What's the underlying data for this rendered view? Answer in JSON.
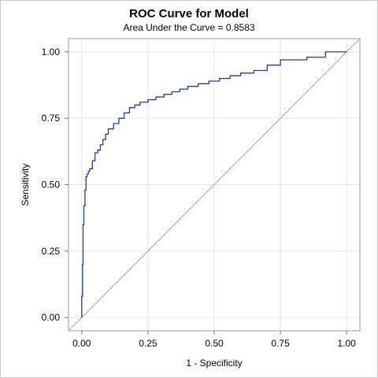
{
  "chart_data": {
    "type": "line",
    "title": "ROC Curve for Model",
    "subtitle": "Area Under the Curve = 0.8583",
    "xlabel": "1 - Specificity",
    "ylabel": "Sensitivity",
    "xlim": [
      -0.05,
      1.05
    ],
    "ylim": [
      -0.05,
      1.05
    ],
    "x_ticks": [
      "0.00",
      "0.25",
      "0.50",
      "0.75",
      "1.00"
    ],
    "y_ticks": [
      "0.00",
      "0.25",
      "0.50",
      "0.75",
      "1.00"
    ],
    "grid": true,
    "legend": "none",
    "series": [
      {
        "role": "roc",
        "color": "#1f3f8f",
        "x": [
          0.0,
          0.0,
          0.003,
          0.003,
          0.005,
          0.005,
          0.008,
          0.008,
          0.012,
          0.012,
          0.016,
          0.016,
          0.02,
          0.02,
          0.025,
          0.025,
          0.03,
          0.03,
          0.04,
          0.04,
          0.05,
          0.05,
          0.06,
          0.06,
          0.07,
          0.07,
          0.08,
          0.08,
          0.09,
          0.09,
          0.1,
          0.1,
          0.12,
          0.12,
          0.14,
          0.14,
          0.16,
          0.16,
          0.18,
          0.18,
          0.2,
          0.2,
          0.22,
          0.22,
          0.25,
          0.25,
          0.28,
          0.28,
          0.31,
          0.31,
          0.34,
          0.34,
          0.37,
          0.37,
          0.4,
          0.4,
          0.44,
          0.44,
          0.48,
          0.48,
          0.52,
          0.52,
          0.56,
          0.56,
          0.6,
          0.6,
          0.65,
          0.65,
          0.7,
          0.7,
          0.75,
          0.75,
          0.85,
          0.85,
          0.92,
          0.92,
          1.0
        ],
        "y": [
          0.0,
          0.08,
          0.08,
          0.2,
          0.2,
          0.35,
          0.35,
          0.42,
          0.42,
          0.48,
          0.48,
          0.53,
          0.53,
          0.54,
          0.54,
          0.55,
          0.55,
          0.56,
          0.56,
          0.59,
          0.59,
          0.62,
          0.62,
          0.63,
          0.63,
          0.65,
          0.65,
          0.67,
          0.67,
          0.69,
          0.69,
          0.71,
          0.71,
          0.73,
          0.73,
          0.75,
          0.75,
          0.77,
          0.77,
          0.79,
          0.79,
          0.8,
          0.8,
          0.81,
          0.81,
          0.82,
          0.82,
          0.83,
          0.83,
          0.84,
          0.84,
          0.85,
          0.85,
          0.86,
          0.86,
          0.87,
          0.87,
          0.88,
          0.88,
          0.89,
          0.89,
          0.9,
          0.9,
          0.91,
          0.91,
          0.92,
          0.92,
          0.93,
          0.93,
          0.95,
          0.95,
          0.97,
          0.97,
          0.98,
          0.98,
          1.0,
          1.0
        ]
      },
      {
        "role": "reference-diagonal",
        "color": "#a8a8a8",
        "x": [
          -0.05,
          1.05
        ],
        "y": [
          -0.05,
          1.05
        ]
      }
    ]
  }
}
